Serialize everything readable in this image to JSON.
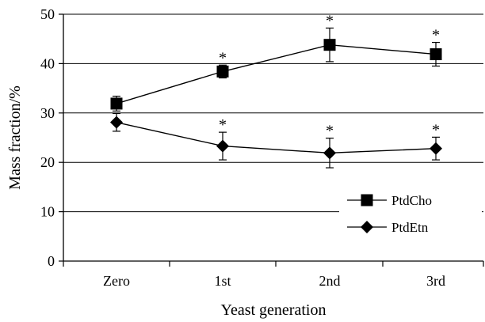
{
  "chart_data": {
    "type": "line",
    "title": "",
    "xlabel": "Yeast generation",
    "ylabel": "Mass fraction/%",
    "categories": [
      "Zero",
      "1st",
      "2nd",
      "3rd"
    ],
    "ylim": [
      0,
      50
    ],
    "yticks": [
      "0",
      "10",
      "20",
      "30",
      "40",
      "50"
    ],
    "grid": "horizontal",
    "legend_position": "lower-right",
    "series": [
      {
        "name": "PtdCho",
        "marker": "square",
        "values": [
          31.9,
          38.4,
          43.8,
          41.9
        ],
        "error": [
          1.5,
          1.3,
          3.4,
          2.4
        ],
        "significance": [
          "",
          "*",
          "*",
          "*"
        ]
      },
      {
        "name": "PtdEtn",
        "marker": "diamond",
        "values": [
          28.1,
          23.3,
          21.9,
          22.8
        ],
        "error": [
          1.8,
          2.8,
          3.0,
          2.3
        ],
        "significance": [
          "",
          "*",
          "*",
          "*"
        ]
      }
    ]
  },
  "colors": {
    "ink": "#000000",
    "background": "#ffffff"
  }
}
